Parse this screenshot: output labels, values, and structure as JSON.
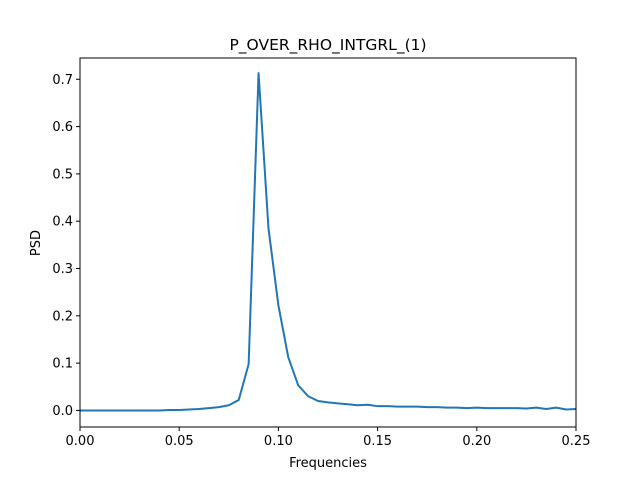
{
  "chart_data": {
    "type": "line",
    "title": "P_OVER_RHO_INTGRL_(1)",
    "xlabel": "Frequencies",
    "ylabel": "PSD",
    "xlim": [
      0,
      0.25
    ],
    "ylim": [
      -0.035,
      0.745
    ],
    "xticks": [
      0,
      0.05,
      0.1,
      0.15,
      0.2,
      0.25
    ],
    "xtick_labels": [
      "0.00",
      "0.05",
      "0.10",
      "0.15",
      "0.20",
      "0.25"
    ],
    "yticks": [
      0,
      0.1,
      0.2,
      0.3,
      0.4,
      0.5,
      0.6,
      0.7
    ],
    "ytick_labels": [
      "0.0",
      "0.1",
      "0.2",
      "0.3",
      "0.4",
      "0.5",
      "0.6",
      "0.7"
    ],
    "grid": false,
    "series": [
      {
        "color": "#1f77b4",
        "x": [
          0,
          0.005,
          0.01,
          0.015,
          0.02,
          0.025,
          0.03,
          0.035,
          0.04,
          0.045,
          0.05,
          0.055,
          0.06,
          0.065,
          0.07,
          0.075,
          0.08,
          0.085,
          0.09,
          0.095,
          0.1,
          0.105,
          0.11,
          0.115,
          0.12,
          0.125,
          0.13,
          0.135,
          0.14,
          0.145,
          0.15,
          0.155,
          0.16,
          0.165,
          0.17,
          0.175,
          0.18,
          0.185,
          0.19,
          0.195,
          0.2,
          0.205,
          0.21,
          0.215,
          0.22,
          0.225,
          0.23,
          0.235,
          0.24,
          0.245,
          0.25
        ],
        "y": [
          0.0,
          0.0,
          0.0,
          0.0,
          0.0,
          0.0,
          0.0,
          0.0,
          0.0,
          0.001,
          0.001,
          0.002,
          0.003,
          0.005,
          0.007,
          0.011,
          0.022,
          0.098,
          0.713,
          0.385,
          0.222,
          0.112,
          0.053,
          0.03,
          0.02,
          0.017,
          0.015,
          0.013,
          0.011,
          0.012,
          0.009,
          0.009,
          0.008,
          0.008,
          0.008,
          0.007,
          0.007,
          0.006,
          0.006,
          0.005,
          0.006,
          0.005,
          0.005,
          0.005,
          0.005,
          0.004,
          0.006,
          0.003,
          0.006,
          0.002,
          0.003
        ]
      }
    ]
  }
}
